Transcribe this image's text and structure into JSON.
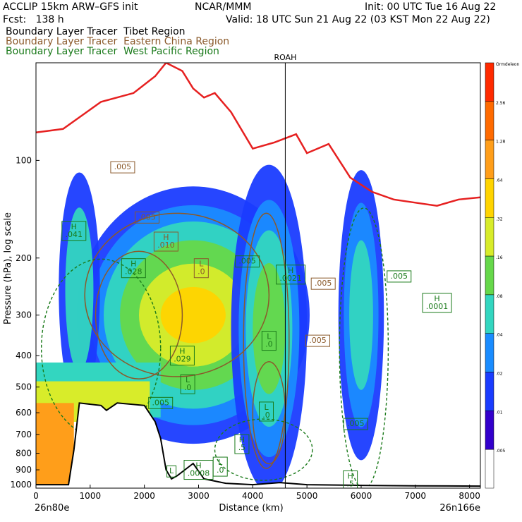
{
  "header": {
    "line1_left": "ACCLIP 15km ARW–GFS init",
    "line1_center": "NCAR/MMM",
    "line1_right": "Init: 00 UTC Tue 16 Aug 22",
    "line2_left": "Fcst:   138 h",
    "line2_right": "Valid: 18 UTC Sun 21 Aug 22 (03 KST Mon 22 Aug 22)",
    "legend": [
      {
        "label": "Boundary Layer Tracer  Tibet Region",
        "color": "#000000"
      },
      {
        "label": "Boundary Layer Tracer  Eastern China Region",
        "color": "#8b5a2b"
      },
      {
        "label": "Boundary Layer Tracer  West Pacific Region",
        "color": "#1a7a1a"
      }
    ]
  },
  "chart_data": {
    "type": "cross-section",
    "xlabel": "Distance (km)",
    "ylabel": "Pressure (hPa), log scale",
    "x_ticks": [
      "0",
      "1000",
      "2000",
      "3000",
      "4000",
      "5000",
      "6000",
      "7000",
      "8000"
    ],
    "xlim": [
      0,
      8200
    ],
    "y_ticks": [
      "100",
      "200",
      "300",
      "400",
      "500",
      "600",
      "700",
      "800",
      "900",
      "1000"
    ],
    "ylim": [
      50,
      1025
    ],
    "y_scale": "log",
    "left_endpoint": "26n80e",
    "right_endpoint": "26n166e",
    "marker_label": "ROAH",
    "marker_x": 4600,
    "colorbar": {
      "levels": [
        "Ormdeleon",
        "2.56",
        "1.28",
        ".64",
        ".32",
        ".16",
        ".08",
        ".04",
        ".02",
        ".01",
        ".005"
      ],
      "colors": [
        "#ff2a00",
        "#ff6a00",
        "#ff9e1a",
        "#ffd400",
        "#d8ec2a",
        "#66d84a",
        "#33d6c0",
        "#1a8cff",
        "#1a3cff",
        "#3300cc",
        "#ffffff"
      ]
    },
    "tropopause_line": {
      "color": "#e62020",
      "x": [
        0,
        500,
        1200,
        1800,
        2200,
        2400,
        2700,
        2900,
        3100,
        3300,
        3600,
        4000,
        4400,
        4800,
        5000,
        5400,
        5800,
        6200,
        6600,
        7000,
        7400,
        7800,
        8200
      ],
      "p": [
        82,
        80,
        66,
        62,
        55,
        50,
        53,
        60,
        64,
        62,
        71,
        92,
        88,
        83,
        95,
        89,
        113,
        125,
        132,
        135,
        138,
        132,
        130
      ]
    },
    "terrain_line": {
      "color": "#000000",
      "x": [
        0,
        600,
        700,
        800,
        1200,
        1300,
        1500,
        2000,
        2200,
        2300,
        2400,
        2500,
        2600,
        2900,
        3100,
        3500,
        4000,
        4500,
        5000,
        6000,
        7000,
        8200
      ],
      "p": [
        1000,
        1000,
        780,
        560,
        570,
        590,
        560,
        570,
        640,
        720,
        900,
        960,
        940,
        860,
        960,
        990,
        1000,
        985,
        1000,
        1005,
        1008,
        1010
      ]
    },
    "labels": [
      {
        "text": "H\n.041",
        "x": 700,
        "p": 165,
        "color": "#1a7a1a"
      },
      {
        "text": ".005",
        "x": 1600,
        "p": 105,
        "color": "#8b5a2b"
      },
      {
        "text": ".005",
        "x": 2050,
        "p": 150,
        "color": "#8b5a2b"
      },
      {
        "text": "H\n.010",
        "x": 2400,
        "p": 178,
        "color": "#8b5a2b"
      },
      {
        "text": "L\n.0",
        "x": 3050,
        "p": 215,
        "color": "#8b5a2b"
      },
      {
        "text": "H\n.028",
        "x": 1800,
        "p": 215,
        "color": "#1a7a1a"
      },
      {
        "text": ".005",
        "x": 3900,
        "p": 205,
        "color": "#1a7a1a"
      },
      {
        "text": "H\n.0021",
        "x": 4700,
        "p": 225,
        "color": "#1a7a1a"
      },
      {
        "text": ".005",
        "x": 5300,
        "p": 240,
        "color": "#8b5a2b"
      },
      {
        "text": ".005",
        "x": 6700,
        "p": 228,
        "color": "#1a7a1a"
      },
      {
        "text": "H\n.0001",
        "x": 7400,
        "p": 275,
        "color": "#1a7a1a"
      },
      {
        "text": "L\n.0",
        "x": 4300,
        "p": 360,
        "color": "#1a7a1a"
      },
      {
        "text": ".005",
        "x": 5200,
        "p": 360,
        "color": "#8b5a2b"
      },
      {
        "text": "H\n.029",
        "x": 2700,
        "p": 400,
        "color": "#1a7a1a"
      },
      {
        "text": "L\n.0",
        "x": 2800,
        "p": 490,
        "color": "#1a7a1a"
      },
      {
        "text": ".005",
        "x": 2300,
        "p": 560,
        "color": "#1a7a1a"
      },
      {
        "text": "L\n.0",
        "x": 4250,
        "p": 595,
        "color": "#1a7a1a"
      },
      {
        "text": "L\n.0",
        "x": 3400,
        "p": 880,
        "color": "#1a7a1a"
      },
      {
        "text": "L",
        "x": 2500,
        "p": 910,
        "color": "#1a7a1a"
      },
      {
        "text": "H\n.0008",
        "x": 3000,
        "p": 900,
        "color": "#1a7a1a"
      },
      {
        "text": "H\n.5",
        "x": 3800,
        "p": 750,
        "color": "#1a7a1a"
      },
      {
        "text": ".005",
        "x": 5900,
        "p": 650,
        "color": "#1a7a1a"
      },
      {
        "text": "H\n.5",
        "x": 5800,
        "p": 970,
        "color": "#1a7a1a"
      }
    ]
  }
}
